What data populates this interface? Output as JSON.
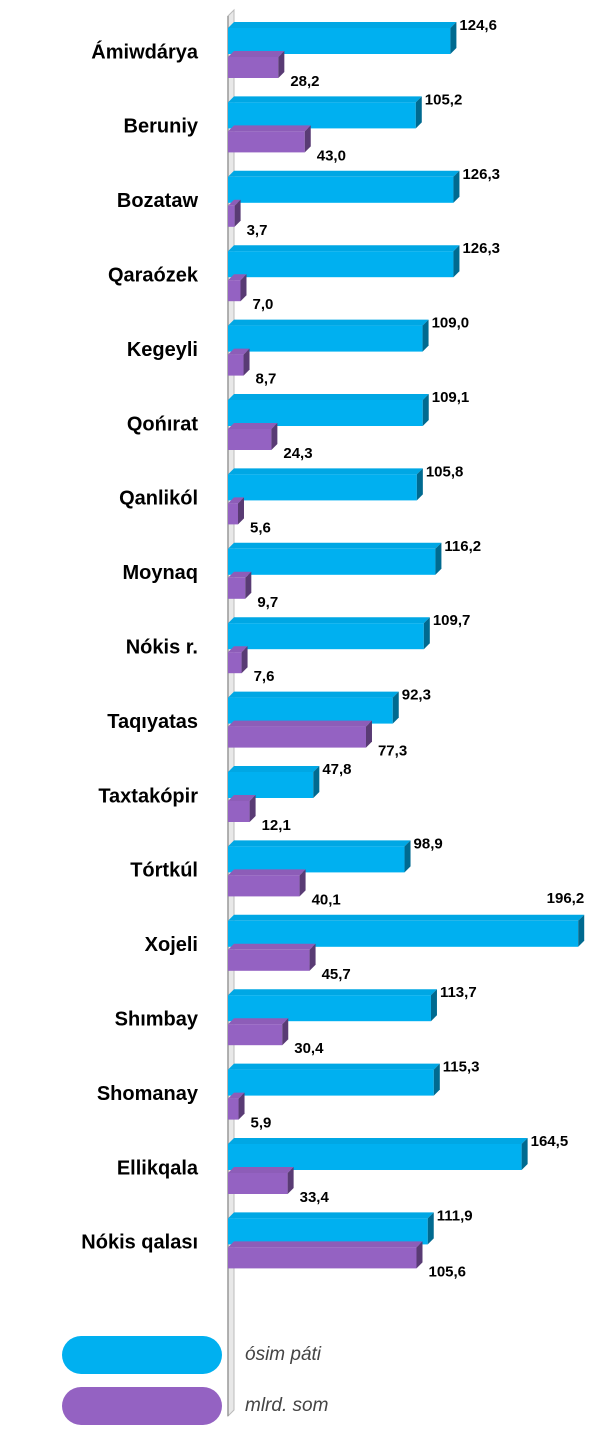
{
  "chart_data": {
    "type": "bar",
    "orientation": "horizontal",
    "categories": [
      "Ámiwdárya",
      "Beruniy",
      "Bozataw",
      "Qaraózek",
      "Kegeyli",
      "Qońırat",
      "Qanlikól",
      "Moynaq",
      "Nókis r.",
      "Taqıyatas",
      "Taxtakópir",
      "Tórtkúl",
      "Xojeli",
      "Shımbay",
      "Shomanay",
      "Ellikqala",
      "Nókis qalası"
    ],
    "series": [
      {
        "name": "ósim páti",
        "color": "#00b0f0",
        "values": [
          124.6,
          105.2,
          126.3,
          126.3,
          109.0,
          109.1,
          105.8,
          116.2,
          109.7,
          92.3,
          47.8,
          98.9,
          196.2,
          113.7,
          115.3,
          164.5,
          111.9
        ],
        "value_labels": [
          "124,6",
          "105,2",
          "126,3",
          "126,3",
          "109,0",
          "109,1",
          "105,8",
          "116,2",
          "109,7",
          "92,3",
          "47,8",
          "98,9",
          "196,2",
          "113,7",
          "115,3",
          "164,5",
          "111,9"
        ]
      },
      {
        "name": "mlrd. som",
        "color": "#9462c2",
        "values": [
          28.2,
          43.0,
          3.7,
          7.0,
          8.7,
          24.3,
          5.6,
          9.7,
          7.6,
          77.3,
          12.1,
          40.1,
          45.7,
          30.4,
          5.9,
          33.4,
          105.6
        ],
        "value_labels": [
          "28,2",
          "43,0",
          "3,7",
          "7,0",
          "8,7",
          "24,3",
          "5,6",
          "9,7",
          "7,6",
          "77,3",
          "12,1",
          "40,1",
          "45,7",
          "30,4",
          "5,9",
          "33,4",
          "105,6"
        ]
      }
    ],
    "xlim": [
      0,
      200
    ]
  }
}
